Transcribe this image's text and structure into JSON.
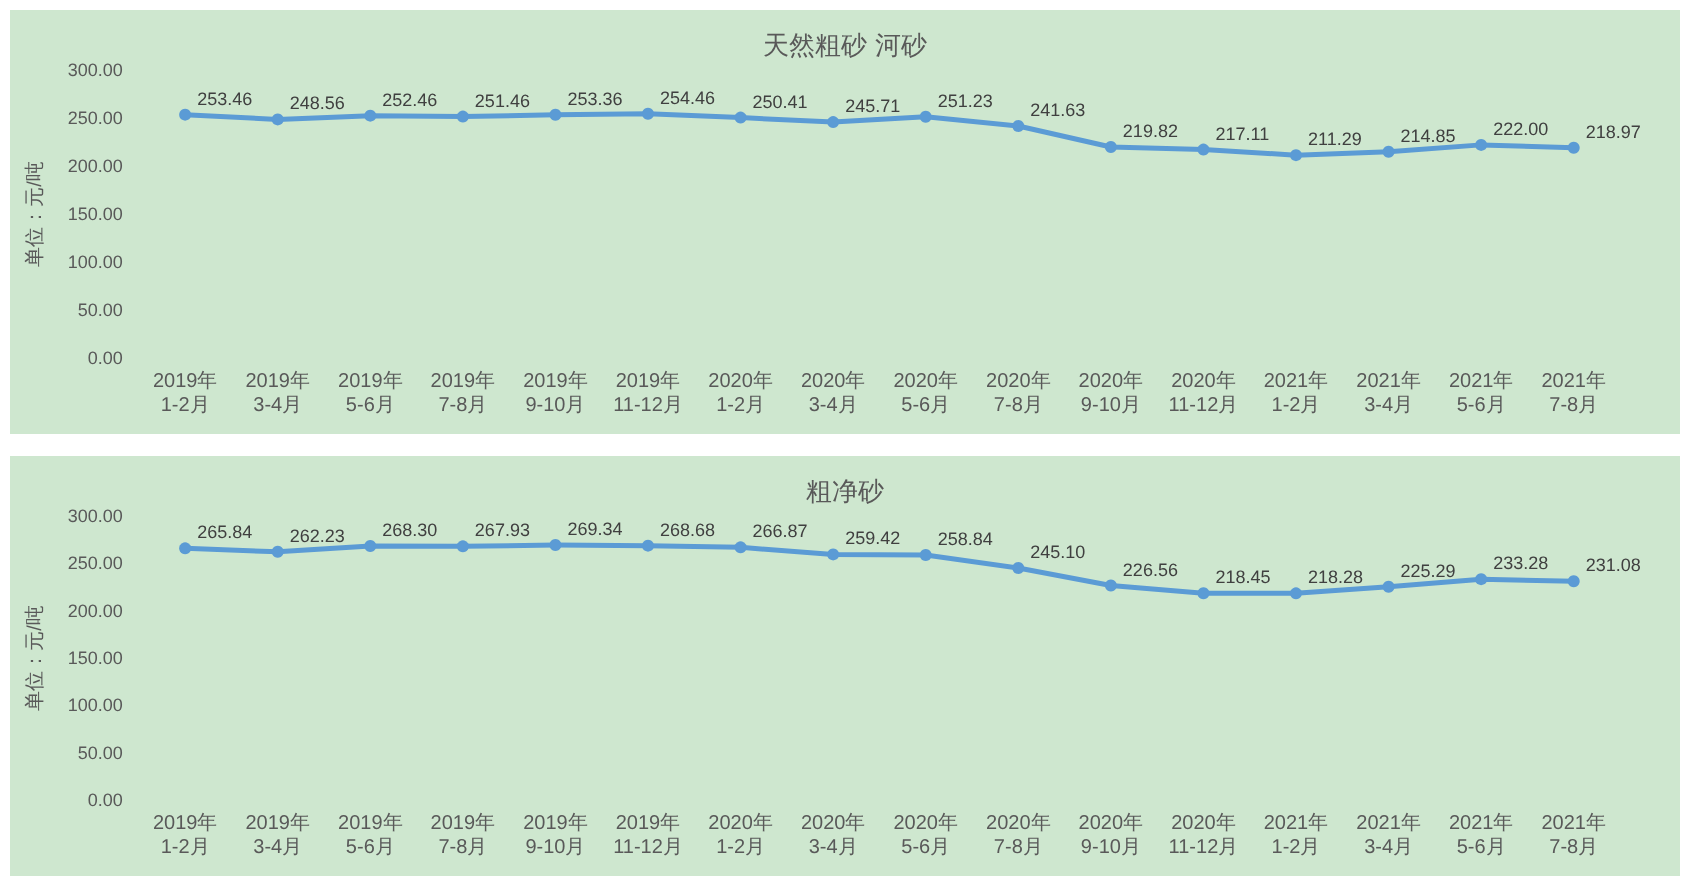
{
  "chart_data": [
    {
      "type": "line",
      "title": "天然粗砂 河砂",
      "ylabel": "单位：元/吨",
      "categories": [
        "2019年1-2月",
        "2019年3-4月",
        "2019年5-6月",
        "2019年7-8月",
        "2019年9-10月",
        "2019年11-12月",
        "2020年1-2月",
        "2020年3-4月",
        "2020年5-6月",
        "2020年7-8月",
        "2020年9-10月",
        "2020年11-12月",
        "2021年1-2月",
        "2021年3-4月",
        "2021年5-6月",
        "2021年7-8月"
      ],
      "series": [
        {
          "color": "#5b9bd5",
          "values": [
            253.46,
            248.56,
            252.46,
            251.46,
            253.36,
            254.46,
            250.41,
            245.71,
            251.23,
            241.63,
            219.82,
            217.11,
            211.29,
            214.85,
            222.0,
            218.97
          ],
          "value_labels": [
            "253.46",
            "248.56",
            "252.46",
            "251.46",
            "253.36",
            "254.46",
            "250.41",
            "245.71",
            "251.23",
            "241.63",
            "219.82",
            "217.11",
            "211.29",
            "214.85",
            "222.00",
            "218.97"
          ]
        }
      ],
      "ylim": [
        0,
        300
      ],
      "yticks": [
        {
          "value": 0,
          "label": "0.00"
        },
        {
          "value": 50,
          "label": "50.00"
        },
        {
          "value": 100,
          "label": "100.00"
        },
        {
          "value": 150,
          "label": "150.00"
        },
        {
          "value": 200,
          "label": "200.00"
        },
        {
          "value": 250,
          "label": "250.00"
        },
        {
          "value": 300,
          "label": "300.00"
        }
      ],
      "marker": "circle",
      "line_style": "solid"
    },
    {
      "type": "line",
      "title": "粗净砂",
      "ylabel": "单位：元/吨",
      "categories": [
        "2019年1-2月",
        "2019年3-4月",
        "2019年5-6月",
        "2019年7-8月",
        "2019年9-10月",
        "2019年11-12月",
        "2020年1-2月",
        "2020年3-4月",
        "2020年5-6月",
        "2020年7-8月",
        "2020年9-10月",
        "2020年11-12月",
        "2021年1-2月",
        "2021年3-4月",
        "2021年5-6月",
        "2021年7-8月"
      ],
      "series": [
        {
          "color": "#5b9bd5",
          "values": [
            265.84,
            262.23,
            268.3,
            267.93,
            269.34,
            268.68,
            266.87,
            259.42,
            258.84,
            245.1,
            226.56,
            218.45,
            218.28,
            225.29,
            233.28,
            231.08
          ],
          "value_labels": [
            "265.84",
            "262.23",
            "268.30",
            "267.93",
            "269.34",
            "268.68",
            "266.87",
            "259.42",
            "258.84",
            "245.10",
            "226.56",
            "218.45",
            "218.28",
            "225.29",
            "233.28",
            "231.08"
          ]
        }
      ],
      "ylim": [
        0,
        300
      ],
      "yticks": [
        {
          "value": 0,
          "label": "0.00"
        },
        {
          "value": 50,
          "label": "50.00"
        },
        {
          "value": 100,
          "label": "100.00"
        },
        {
          "value": 150,
          "label": "150.00"
        },
        {
          "value": 200,
          "label": "200.00"
        },
        {
          "value": 250,
          "label": "250.00"
        },
        {
          "value": 300,
          "label": "300.00"
        }
      ],
      "marker": "circle",
      "line_style": "solid"
    }
  ]
}
